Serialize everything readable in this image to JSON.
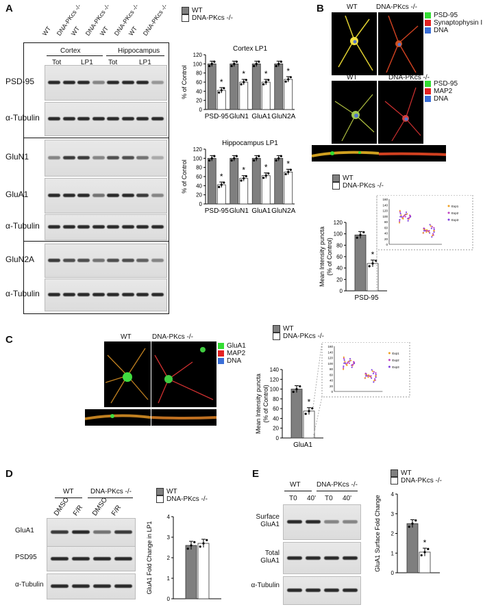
{
  "panels": {
    "A": "A",
    "B": "B",
    "C": "C",
    "D": "D",
    "E": "E"
  },
  "colors": {
    "wt": "#7f7f7f",
    "ko": "#ffffff",
    "green": "#33dd33",
    "red": "#e32222",
    "blue": "#3a6fd8"
  },
  "legend": {
    "wt": "WT",
    "ko": "DNA-PKcs -/-"
  },
  "panelA": {
    "lanes": [
      "WT",
      "DNA-PKcs -/-",
      "WT",
      "DNA-PKcs -/-",
      "WT",
      "DNA-PKcs -/-",
      "WT",
      "DNA-PKcs -/-"
    ],
    "group_cortex": "Cortex",
    "group_hippo": "Hippocampus",
    "tot": "Tot",
    "lp1": "LP1",
    "blots": [
      "PSD-95",
      "α-Tubulin",
      "GluN1",
      "GluA1",
      "α-Tubulin",
      "GluN2A",
      "α-Tubulin"
    ]
  },
  "panelB": {
    "top_wt": "WT",
    "top_ko": "DNA-PKcs -/-",
    "legend1": [
      "PSD-95",
      "Synaptophysin I",
      "DNA"
    ],
    "legend2": [
      "PSD-95",
      "MAP2",
      "DNA"
    ],
    "bottom_wt": "WT",
    "bottom_ko": "DNA-PKcs -/-"
  },
  "panelC": {
    "wt": "WT",
    "ko": "DNA-PKcs -/-",
    "legend": [
      "GluA1",
      "MAP2",
      "DNA"
    ]
  },
  "panelD": {
    "wt": "WT",
    "ko": "DNA-PKcs -/-",
    "lanes": [
      "DMSO",
      "F/R",
      "DMSO",
      "F/R"
    ],
    "blots": [
      "GluA1",
      "PSD95",
      "α-Tubulin"
    ]
  },
  "panelE": {
    "wt": "WT",
    "ko": "DNA-PKcs -/-",
    "lanes": [
      "T0",
      "40'",
      "T0",
      "40'"
    ],
    "blots": [
      "Surface\nGluA1",
      "Total\nGluA1",
      "α-Tubulin"
    ]
  },
  "chart_data": [
    {
      "id": "A1",
      "type": "bar",
      "title": "Cortex LP1",
      "ylabel": "% of  Control",
      "categories": [
        "PSD-95",
        "GluN1",
        "GluA1",
        "GluN2A"
      ],
      "series": [
        {
          "name": "WT",
          "values": [
            100,
            100,
            100,
            100
          ]
        },
        {
          "name": "DNA-PKcs -/-",
          "values": [
            42,
            60,
            60,
            66
          ]
        }
      ],
      "ylim": [
        0,
        120
      ],
      "yticks": [
        0,
        20,
        40,
        60,
        80,
        100,
        120
      ],
      "sig": "*"
    },
    {
      "id": "A2",
      "type": "bar",
      "title": "Hippocampus LP1",
      "ylabel": "% of  Control",
      "categories": [
        "PSD-95",
        "GluN1",
        "GluA1",
        "GluN2A"
      ],
      "series": [
        {
          "name": "WT",
          "values": [
            100,
            100,
            100,
            100
          ]
        },
        {
          "name": "DNA-PKcs -/-",
          "values": [
            42,
            56,
            62,
            70
          ]
        }
      ],
      "ylim": [
        0,
        120
      ],
      "yticks": [
        0,
        20,
        40,
        60,
        80,
        100,
        120
      ],
      "sig": "*"
    },
    {
      "id": "B",
      "type": "bar",
      "ylabel": "Mean Intensity puncta\n(% of Control)",
      "categories": [
        "PSD-95"
      ],
      "series": [
        {
          "name": "WT",
          "values": [
            98
          ]
        },
        {
          "name": "DNA-PKcs -/-",
          "values": [
            48
          ]
        }
      ],
      "ylim": [
        0,
        120
      ],
      "yticks": [
        0,
        20,
        40,
        60,
        80,
        100,
        120
      ],
      "sig": "*",
      "inset": {
        "yticks": [
          0,
          20,
          40,
          60,
          80,
          100,
          120,
          140,
          160
        ],
        "legend": [
          "Exp1",
          "Exp2",
          "Exp3"
        ]
      }
    },
    {
      "id": "C",
      "type": "bar",
      "ylabel": "Mean Intensity puncta\n(% of Control)",
      "categories": [
        "GluA1"
      ],
      "series": [
        {
          "name": "WT",
          "values": [
            100
          ]
        },
        {
          "name": "DNA-PKcs -/-",
          "values": [
            55
          ]
        }
      ],
      "ylim": [
        0,
        140
      ],
      "yticks": [
        0,
        20,
        40,
        60,
        80,
        100,
        120,
        140
      ],
      "sig": "*",
      "inset": {
        "yticks": [
          0,
          20,
          40,
          60,
          80,
          100,
          120,
          140,
          160
        ],
        "legend": [
          "Exp1",
          "Exp2",
          "Exp3"
        ]
      }
    },
    {
      "id": "D",
      "type": "bar",
      "ylabel": "GluA1 Fold Change in LP1",
      "categories": [
        ""
      ],
      "series": [
        {
          "name": "WT",
          "values": [
            2.6
          ]
        },
        {
          "name": "DNA-PKcs -/-",
          "values": [
            2.7
          ]
        }
      ],
      "ylim": [
        0,
        4
      ],
      "yticks": [
        0,
        1,
        2,
        3,
        4
      ]
    },
    {
      "id": "E",
      "type": "bar",
      "ylabel": "GluA1 Surface Fold Change",
      "categories": [
        ""
      ],
      "series": [
        {
          "name": "WT",
          "values": [
            2.5
          ]
        },
        {
          "name": "DNA-PKcs -/-",
          "values": [
            1.05
          ]
        }
      ],
      "ylim": [
        0,
        4
      ],
      "yticks": [
        0,
        1,
        2,
        3,
        4
      ],
      "sig": "*"
    }
  ]
}
